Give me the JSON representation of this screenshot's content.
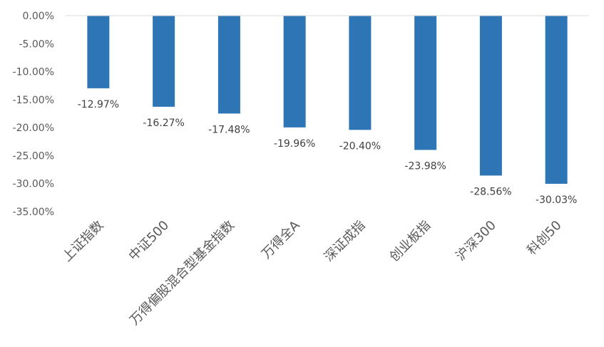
{
  "chart_data": {
    "type": "bar",
    "title": "",
    "xlabel": "",
    "ylabel": "",
    "categories": [
      "上证指数",
      "中证500",
      "万得偏股混合型基金指数",
      "万得全A",
      "深证成指",
      "创业板指",
      "沪深300",
      "科创50"
    ],
    "values": [
      -12.97,
      -16.27,
      -17.48,
      -19.96,
      -20.4,
      -23.98,
      -28.56,
      -30.03
    ],
    "data_labels": [
      "-12.97%",
      "-16.27%",
      "-17.48%",
      "-19.96%",
      "-20.40%",
      "-23.98%",
      "-28.56%",
      "-30.03%"
    ],
    "y_ticks": [
      0,
      -5,
      -10,
      -15,
      -20,
      -25,
      -30,
      -35
    ],
    "y_tick_labels": [
      "0.00%",
      "-5.00%",
      "-10.00%",
      "-15.00%",
      "-20.00%",
      "-25.00%",
      "-30.00%",
      "-35.00%"
    ],
    "ylim": [
      -35,
      0
    ],
    "grid": false,
    "legend": "none",
    "colors": {
      "bar": "#2e75b6",
      "axis": "#d9d9d9",
      "tick_text": "#595959",
      "label_text": "#404040"
    }
  }
}
